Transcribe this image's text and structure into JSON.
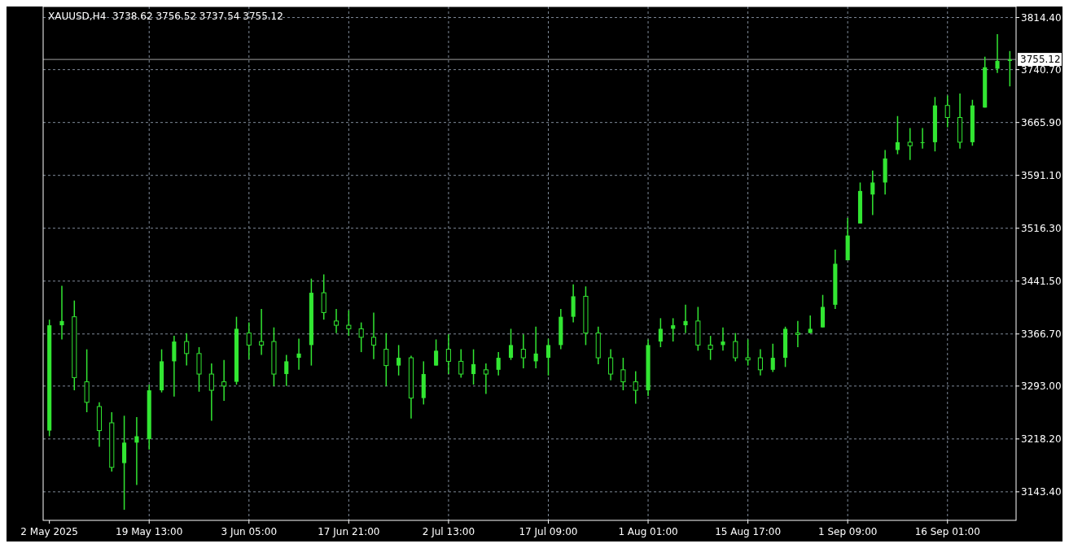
{
  "chart_data": {
    "type": "candlestick",
    "title": "XAUUSD,H4  3738.62 3756.52 3737.54 3755.12",
    "categories": [
      "2 May 2025",
      null,
      null,
      null,
      null,
      null,
      null,
      null,
      "19 May 13:00",
      null,
      null,
      null,
      null,
      null,
      null,
      null,
      "3 Jun 05:00",
      null,
      null,
      null,
      null,
      null,
      null,
      null,
      "17 Jun 21:00",
      null,
      null,
      null,
      null,
      null,
      null,
      null,
      "2 Jul 13:00",
      null,
      null,
      null,
      null,
      null,
      null,
      null,
      "17 Jul 09:00",
      null,
      null,
      null,
      null,
      null,
      null,
      null,
      "1 Aug 01:00",
      null,
      null,
      null,
      null,
      null,
      null,
      null,
      "15 Aug 17:00",
      null,
      null,
      null,
      null,
      null,
      null,
      null,
      "1 Sep 09:00",
      null,
      null,
      null,
      null,
      null,
      null,
      null,
      "16 Sep 01:00",
      null,
      null,
      null,
      null,
      null
    ],
    "ohlc": [
      [
        3230,
        3387,
        3222,
        3379
      ],
      [
        3379,
        3435,
        3359,
        3385
      ],
      [
        3391,
        3414,
        3287,
        3305
      ],
      [
        3299,
        3345,
        3256,
        3270
      ],
      [
        3264,
        3270,
        3207,
        3230
      ],
      [
        3241,
        3256,
        3172,
        3178
      ],
      [
        3184,
        3251,
        3118,
        3213
      ],
      [
        3213,
        3249,
        3153,
        3222
      ],
      [
        3218,
        3295,
        3203,
        3287
      ],
      [
        3287,
        3345,
        3284,
        3328
      ],
      [
        3328,
        3364,
        3278,
        3356
      ],
      [
        3356,
        3368,
        3322,
        3339
      ],
      [
        3339,
        3348,
        3285,
        3310
      ],
      [
        3310,
        3325,
        3244,
        3287
      ],
      [
        3299,
        3330,
        3272,
        3293
      ],
      [
        3299,
        3391,
        3295,
        3374
      ],
      [
        3368,
        3383,
        3331,
        3351
      ],
      [
        3356,
        3402,
        3337,
        3351
      ],
      [
        3356,
        3376,
        3293,
        3310
      ],
      [
        3310,
        3337,
        3293,
        3328
      ],
      [
        3333,
        3360,
        3316,
        3339
      ],
      [
        3351,
        3445,
        3322,
        3425
      ],
      [
        3425,
        3451,
        3387,
        3397
      ],
      [
        3385,
        3402,
        3368,
        3379
      ],
      [
        3379,
        3400,
        3364,
        3374
      ],
      [
        3374,
        3383,
        3341,
        3362
      ],
      [
        3362,
        3397,
        3331,
        3351
      ],
      [
        3345,
        3368,
        3293,
        3322
      ],
      [
        3322,
        3351,
        3308,
        3333
      ],
      [
        3333,
        3336,
        3247,
        3276
      ],
      [
        3276,
        3328,
        3267,
        3310
      ],
      [
        3322,
        3359,
        3322,
        3343
      ],
      [
        3345,
        3366,
        3310,
        3328
      ],
      [
        3328,
        3345,
        3305,
        3310
      ],
      [
        3310,
        3345,
        3295,
        3324
      ],
      [
        3316,
        3325,
        3282,
        3310
      ],
      [
        3316,
        3341,
        3308,
        3333
      ],
      [
        3333,
        3374,
        3330,
        3351
      ],
      [
        3345,
        3366,
        3318,
        3333
      ],
      [
        3328,
        3377,
        3318,
        3339
      ],
      [
        3333,
        3360,
        3308,
        3351
      ],
      [
        3351,
        3402,
        3345,
        3391
      ],
      [
        3391,
        3437,
        3383,
        3420
      ],
      [
        3420,
        3434,
        3351,
        3368
      ],
      [
        3368,
        3377,
        3324,
        3333
      ],
      [
        3333,
        3345,
        3301,
        3310
      ],
      [
        3316,
        3333,
        3287,
        3299
      ],
      [
        3299,
        3314,
        3268,
        3287
      ],
      [
        3287,
        3359,
        3279,
        3351
      ],
      [
        3356,
        3389,
        3348,
        3374
      ],
      [
        3374,
        3389,
        3356,
        3379
      ],
      [
        3379,
        3408,
        3368,
        3385
      ],
      [
        3385,
        3405,
        3343,
        3351
      ],
      [
        3351,
        3364,
        3330,
        3345
      ],
      [
        3351,
        3376,
        3343,
        3356
      ],
      [
        3356,
        3368,
        3328,
        3333
      ],
      [
        3333,
        3359,
        3322,
        3330
      ],
      [
        3333,
        3345,
        3308,
        3316
      ],
      [
        3316,
        3353,
        3313,
        3333
      ],
      [
        3333,
        3377,
        3320,
        3374
      ],
      [
        3368,
        3385,
        3348,
        3366
      ],
      [
        3368,
        3393,
        3368,
        3374
      ],
      [
        3376,
        3422,
        3376,
        3405
      ],
      [
        3408,
        3486,
        3402,
        3466
      ],
      [
        3471,
        3531,
        3471,
        3506
      ],
      [
        3523,
        3581,
        3523,
        3569
      ],
      [
        3564,
        3598,
        3535,
        3581
      ],
      [
        3581,
        3627,
        3564,
        3615
      ],
      [
        3627,
        3675,
        3621,
        3638
      ],
      [
        3638,
        3658,
        3613,
        3633
      ],
      [
        3638,
        3658,
        3629,
        3638
      ],
      [
        3638,
        3702,
        3625,
        3690
      ],
      [
        3690,
        3704,
        3659,
        3673
      ],
      [
        3673,
        3707,
        3629,
        3638
      ],
      [
        3638,
        3698,
        3633,
        3690
      ],
      [
        3687,
        3759,
        3687,
        3744
      ],
      [
        3742,
        3791,
        3736,
        3753
      ],
      [
        3753,
        3767,
        3717,
        3755
      ]
    ],
    "color": "#32e632",
    "ylim": [
      3103,
      3830
    ],
    "yticks": [
      {
        "value": 3143.4,
        "label": "3143.40"
      },
      {
        "value": 3218.2,
        "label": "3218.20"
      },
      {
        "value": 3293,
        "label": "3293.00"
      },
      {
        "value": 3366.7,
        "label": "3366.70"
      },
      {
        "value": 3441.5,
        "label": "3441.50"
      },
      {
        "value": 3516.3,
        "label": "3516.30"
      },
      {
        "value": 3591.1,
        "label": "3591.10"
      },
      {
        "value": 3665.9,
        "label": "3665.90"
      },
      {
        "value": 3740.7,
        "label": "3740.70"
      },
      {
        "value": 3814.4,
        "label": "3814.40"
      }
    ],
    "grid": true,
    "ref_lines": [
      {
        "axis": "y",
        "value": 3755.12,
        "label": "3755.12",
        "color": "#a0a0a0"
      }
    ]
  }
}
